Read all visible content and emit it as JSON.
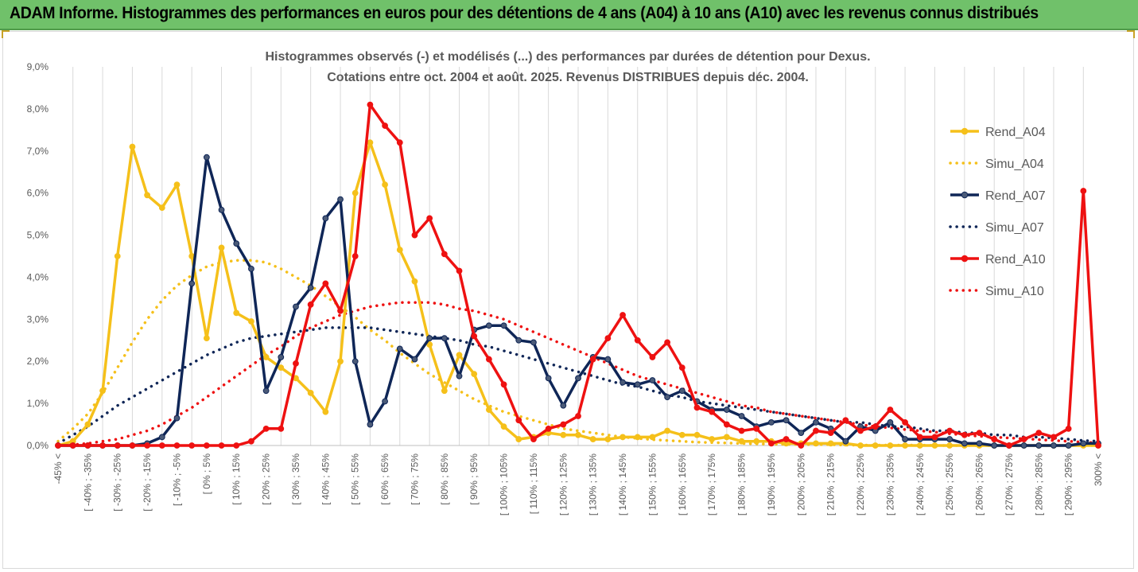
{
  "banner": {
    "title": "ADAM Informe. Histogrammes des performances en euros pour des détentions de 4 ans (A04) à 10 ans (A10) avec les revenus connus distribués"
  },
  "colors": {
    "banner_bg": "#70c16a",
    "a04": "#f5c01a",
    "a07": "#0f2657",
    "a10": "#ee1111",
    "grid": "#d9d9d9",
    "text": "#595959"
  },
  "chart_data": {
    "type": "line",
    "title": [
      "Histogrammes observés (-) et modélisés (...) des performances par durées de détention pour Dexus.",
      "Cotations entre oct. 2004 et août. 2025. Revenus DISTRIBUES depuis déc. 2004."
    ],
    "y_ticks": [
      "0,0%",
      "1,0%",
      "2,0%",
      "3,0%",
      "4,0%",
      "5,0%",
      "6,0%",
      "7,0%",
      "8,0%",
      "9,0%"
    ],
    "ylim": [
      0,
      9
    ],
    "grid": "vertical",
    "legend_position": "right",
    "categories": [
      "-45% <",
      "[ -45% ; -40%",
      "[ -40% ; -35%",
      "[ -35% ; -30%",
      "[ -30% ; -25%",
      "[ -25% ; -20%",
      "[ -20% ; -15%",
      "[ -15% ; -10%",
      "[ -10% ; -5%",
      "[ -5% ; 0%",
      "[ 0% ; 5%",
      "[ 5% ; 10%",
      "[ 10% ; 15%",
      "[ 15% ; 20%",
      "[ 20% ; 25%",
      "[ 25% ; 30%",
      "[ 30% ; 35%",
      "[ 35% ; 40%",
      "[ 40% ; 45%",
      "[ 45% ; 50%",
      "[ 50% ; 55%",
      "[ 55% ; 60%",
      "[ 60% ; 65%",
      "[ 65% ; 70%",
      "[ 70% ; 75%",
      "[ 75% ; 80%",
      "[ 80% ; 85%",
      "[ 85% ; 90%",
      "[ 90% ; 95%",
      "[ 95% ; 100%",
      "[ 100% ; 105%",
      "[ 105% ; 110%",
      "[ 110% ; 115%",
      "[ 115% ; 120%",
      "[ 120% ; 125%",
      "[ 125% ; 130%",
      "[ 130% ; 135%",
      "[ 135% ; 140%",
      "[ 140% ; 145%",
      "[ 145% ; 150%",
      "[ 150% ; 155%",
      "[ 155% ; 160%",
      "[ 160% ; 165%",
      "[ 165% ; 170%",
      "[ 170% ; 175%",
      "[ 175% ; 180%",
      "[ 180% ; 185%",
      "[ 185% ; 190%",
      "[ 190% ; 195%",
      "[ 195% ; 200%",
      "[ 200% ; 205%",
      "[ 205% ; 210%",
      "[ 210% ; 215%",
      "[ 215% ; 220%",
      "[ 220% ; 225%",
      "[ 225% ; 230%",
      "[ 230% ; 235%",
      "[ 235% ; 240%",
      "[ 240% ; 245%",
      "[ 245% ; 250%",
      "[ 250% ; 255%",
      "[ 255% ; 260%",
      "[ 260% ; 265%",
      "[ 265% ; 270%",
      "[ 270% ; 275%",
      "[ 275% ; 280%",
      "[ 280% ; 285%",
      "[ 285% ; 290%",
      "[ 290% ; 295%",
      "[ 295% ; 300%",
      "300% <"
    ],
    "series": [
      {
        "name": "Rend_A04",
        "style": "solid",
        "color": "#f5c01a",
        "values": [
          0.0,
          0.1,
          0.5,
          1.3,
          4.5,
          7.1,
          5.95,
          5.65,
          6.2,
          4.5,
          2.55,
          4.7,
          3.15,
          2.95,
          2.1,
          1.85,
          1.6,
          1.25,
          0.8,
          2.0,
          6.0,
          7.2,
          6.2,
          4.65,
          3.9,
          2.4,
          1.3,
          2.15,
          1.7,
          0.85,
          0.45,
          0.15,
          0.2,
          0.3,
          0.25,
          0.25,
          0.15,
          0.15,
          0.2,
          0.2,
          0.2,
          0.35,
          0.25,
          0.25,
          0.15,
          0.2,
          0.1,
          0.1,
          0.1,
          0.05,
          0.05,
          0.05,
          0.05,
          0.05,
          0.0,
          0.0,
          0.0,
          0.0,
          0.0,
          0.0,
          0.0,
          0.0,
          0.0,
          0.0,
          0.0,
          0.0,
          0.0,
          0.0,
          0.0,
          0.0,
          0.0
        ]
      },
      {
        "name": "Simu_A04",
        "style": "dotted",
        "color": "#f5c01a",
        "values": [
          0.1,
          0.4,
          0.75,
          1.25,
          1.85,
          2.45,
          3.0,
          3.45,
          3.8,
          4.05,
          4.25,
          4.35,
          4.4,
          4.4,
          4.35,
          4.2,
          4.0,
          3.8,
          3.55,
          3.3,
          3.05,
          2.75,
          2.5,
          2.2,
          1.95,
          1.7,
          1.5,
          1.3,
          1.1,
          0.95,
          0.8,
          0.7,
          0.6,
          0.5,
          0.4,
          0.35,
          0.3,
          0.25,
          0.2,
          0.17,
          0.14,
          0.12,
          0.1,
          0.08,
          0.07,
          0.06,
          0.05,
          0.04,
          0.03,
          0.03,
          0.02,
          0.02,
          0.02,
          0.01,
          0.01,
          0.01,
          0.01,
          0.01,
          0.01,
          0.0,
          0.0,
          0.0,
          0.0,
          0.0,
          0.0,
          0.0,
          0.0,
          0.0,
          0.0,
          0.0,
          0.0
        ]
      },
      {
        "name": "Rend_A07",
        "style": "solid",
        "color": "#0f2657",
        "values": [
          0.0,
          0.0,
          0.0,
          0.0,
          0.0,
          0.0,
          0.05,
          0.2,
          0.65,
          3.85,
          6.85,
          5.6,
          4.8,
          4.2,
          1.3,
          2.1,
          3.3,
          3.75,
          5.4,
          5.85,
          2.0,
          0.5,
          1.05,
          2.3,
          2.05,
          2.55,
          2.55,
          1.65,
          2.75,
          2.85,
          2.85,
          2.5,
          2.45,
          1.6,
          0.95,
          1.6,
          2.1,
          2.05,
          1.5,
          1.45,
          1.55,
          1.15,
          1.3,
          1.05,
          0.85,
          0.85,
          0.7,
          0.45,
          0.55,
          0.6,
          0.3,
          0.55,
          0.4,
          0.1,
          0.45,
          0.35,
          0.55,
          0.15,
          0.15,
          0.15,
          0.15,
          0.05,
          0.05,
          0.0,
          0.0,
          0.0,
          0.0,
          0.0,
          0.0,
          0.05,
          0.05
        ]
      },
      {
        "name": "Simu_A07",
        "style": "dotted",
        "color": "#0f2657",
        "values": [
          0.05,
          0.25,
          0.45,
          0.7,
          0.95,
          1.15,
          1.35,
          1.55,
          1.75,
          1.95,
          2.15,
          2.3,
          2.45,
          2.55,
          2.6,
          2.65,
          2.7,
          2.75,
          2.8,
          2.8,
          2.8,
          2.8,
          2.75,
          2.7,
          2.65,
          2.6,
          2.55,
          2.5,
          2.4,
          2.35,
          2.25,
          2.15,
          2.05,
          1.95,
          1.85,
          1.75,
          1.65,
          1.55,
          1.45,
          1.4,
          1.3,
          1.2,
          1.15,
          1.05,
          1.0,
          0.95,
          0.9,
          0.85,
          0.8,
          0.75,
          0.7,
          0.65,
          0.6,
          0.55,
          0.55,
          0.5,
          0.45,
          0.45,
          0.4,
          0.35,
          0.35,
          0.3,
          0.3,
          0.25,
          0.25,
          0.2,
          0.2,
          0.18,
          0.15,
          0.12,
          0.1
        ]
      },
      {
        "name": "Rend_A10",
        "style": "solid",
        "color": "#ee1111",
        "values": [
          0.0,
          0.0,
          0.0,
          0.0,
          0.0,
          0.0,
          0.0,
          0.0,
          0.0,
          0.0,
          0.0,
          0.0,
          0.0,
          0.1,
          0.4,
          0.4,
          1.95,
          3.35,
          3.85,
          3.2,
          4.5,
          8.1,
          7.6,
          7.2,
          5.0,
          5.4,
          4.55,
          4.15,
          2.6,
          2.05,
          1.45,
          0.6,
          0.15,
          0.4,
          0.5,
          0.7,
          2.05,
          2.55,
          3.1,
          2.5,
          2.1,
          2.45,
          1.85,
          0.9,
          0.8,
          0.5,
          0.35,
          0.4,
          0.05,
          0.15,
          0.0,
          0.35,
          0.3,
          0.6,
          0.35,
          0.45,
          0.85,
          0.55,
          0.2,
          0.2,
          0.35,
          0.25,
          0.3,
          0.15,
          0.0,
          0.15,
          0.3,
          0.2,
          0.4,
          6.05,
          0.0
        ]
      },
      {
        "name": "Simu_A10",
        "style": "dotted",
        "color": "#ee1111",
        "values": [
          0.0,
          0.02,
          0.05,
          0.1,
          0.15,
          0.25,
          0.35,
          0.5,
          0.7,
          0.9,
          1.15,
          1.4,
          1.65,
          1.9,
          2.15,
          2.35,
          2.6,
          2.8,
          2.95,
          3.1,
          3.2,
          3.3,
          3.35,
          3.4,
          3.4,
          3.4,
          3.35,
          3.25,
          3.2,
          3.1,
          3.0,
          2.85,
          2.7,
          2.55,
          2.4,
          2.25,
          2.1,
          1.95,
          1.8,
          1.65,
          1.55,
          1.45,
          1.35,
          1.25,
          1.15,
          1.05,
          0.95,
          0.9,
          0.8,
          0.75,
          0.7,
          0.65,
          0.6,
          0.55,
          0.5,
          0.45,
          0.42,
          0.38,
          0.35,
          0.32,
          0.28,
          0.25,
          0.22,
          0.2,
          0.18,
          0.16,
          0.14,
          0.12,
          0.1,
          0.08,
          0.06
        ]
      }
    ]
  }
}
